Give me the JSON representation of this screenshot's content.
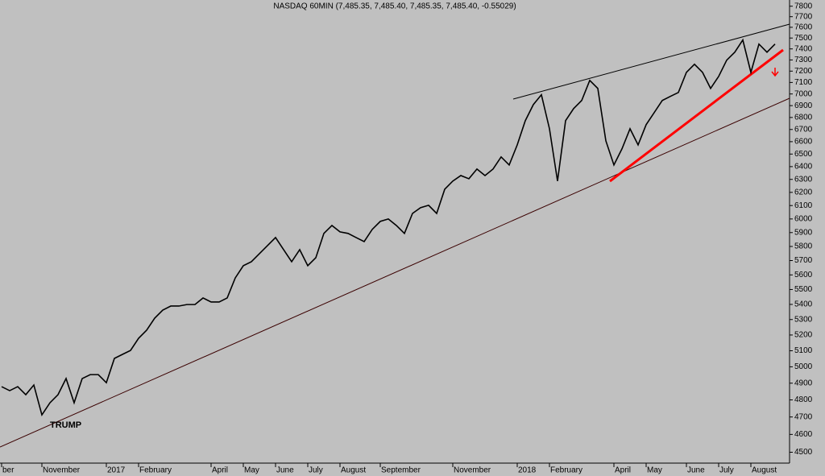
{
  "chart_data": {
    "type": "line",
    "title": "NASDAQ 60MIN (7,485.35, 7,485.40, 7,485.35, 7,485.40, -0.55029)",
    "annotation": "TRUMP",
    "categories": [
      "ber",
      null,
      null,
      null,
      null,
      "November",
      null,
      null,
      null,
      null,
      null,
      null,
      null,
      "2017",
      null,
      null,
      null,
      "February",
      null,
      null,
      null,
      null,
      null,
      null,
      null,
      null,
      "April",
      null,
      null,
      null,
      "May",
      null,
      null,
      null,
      "June",
      null,
      null,
      null,
      "July",
      null,
      null,
      null,
      "August",
      null,
      null,
      null,
      null,
      "September",
      null,
      null,
      null,
      null,
      null,
      null,
      null,
      null,
      "November",
      null,
      null,
      null,
      null,
      null,
      null,
      null,
      "2018",
      null,
      null,
      null,
      "February",
      null,
      null,
      null,
      null,
      null,
      null,
      null,
      "April",
      null,
      null,
      null,
      "May",
      null,
      null,
      null,
      null,
      "June",
      null,
      null,
      null,
      "July",
      null,
      null,
      null,
      "August",
      null,
      null,
      null
    ],
    "series": [
      {
        "color": "#000000",
        "values": [
          4879,
          4855,
          4879,
          4831,
          4889,
          4712,
          4783,
          4831,
          4928,
          4783,
          4928,
          4952,
          4952,
          4903,
          5052,
          5077,
          5102,
          5179,
          5231,
          5309,
          5362,
          5389,
          5389,
          5399,
          5399,
          5443,
          5416,
          5416,
          5443,
          5579,
          5664,
          5692,
          5749,
          5806,
          5864,
          5777,
          5692,
          5777,
          5664,
          5720,
          5894,
          5952,
          5905,
          5894,
          5864,
          5835,
          5923,
          5982,
          6000,
          5952,
          5894,
          6041,
          6084,
          6102,
          6041,
          6224,
          6287,
          6330,
          6305,
          6381,
          6330,
          6381,
          6477,
          6413,
          6574,
          6773,
          6909,
          6993,
          6706,
          6287,
          6773,
          6875,
          6944,
          7118,
          7048,
          6607,
          6413,
          6542,
          6706,
          6574,
          6740,
          6841,
          6944,
          6979,
          7013,
          7189,
          7261,
          7189,
          7048,
          7153,
          7298,
          7370,
          7482,
          7189,
          7444,
          7370,
          7444
        ]
      }
    ],
    "log_scale": true,
    "ylim": [
      4440,
      7860
    ],
    "yticks": [
      4500,
      4600,
      4700,
      4800,
      4900,
      5000,
      5100,
      5200,
      5300,
      5400,
      5500,
      5600,
      5700,
      5800,
      5900,
      6000,
      6100,
      6200,
      6300,
      6400,
      6500,
      6600,
      6700,
      6800,
      6900,
      7000,
      7100,
      7200,
      7300,
      7400,
      7500,
      7600,
      7700,
      7800
    ]
  }
}
